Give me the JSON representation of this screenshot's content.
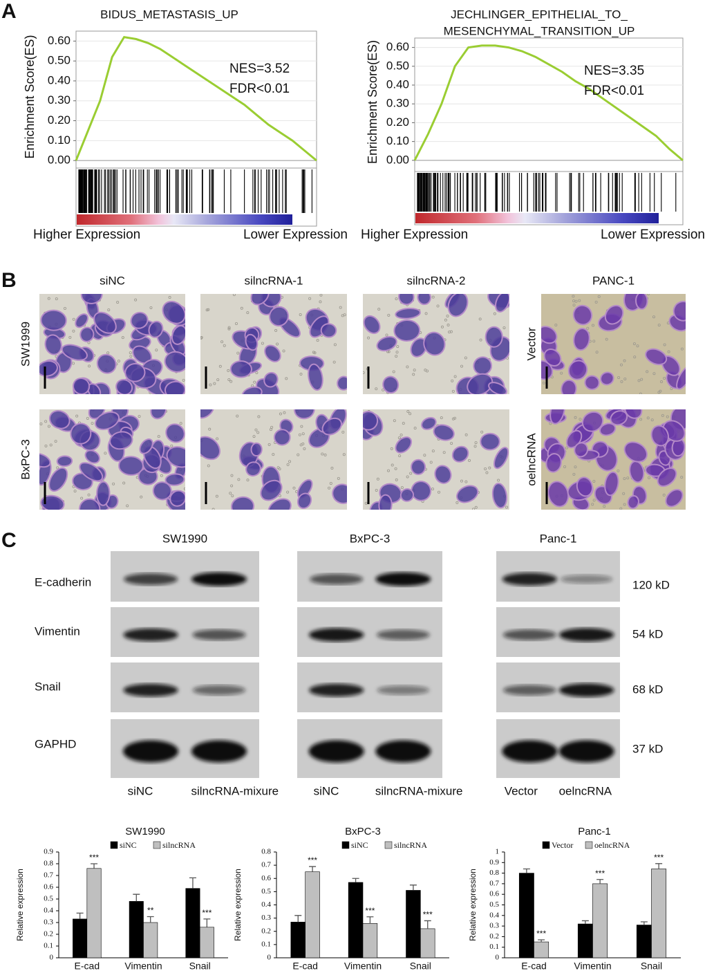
{
  "panels": {
    "a": "A",
    "b": "B",
    "c": "C"
  },
  "chart_data": [
    {
      "type": "gsea",
      "title": [
        "BIDUS_METASTASIS_UP"
      ],
      "y_label": "Enrichment Score(ES)",
      "values": [
        0,
        0.15,
        0.3,
        0.52,
        0.62,
        0.61,
        0.59,
        0.56,
        0.52,
        0.48,
        0.44,
        0.4,
        0.36,
        0.32,
        0.28,
        0.23,
        0.18,
        0.14,
        0.1,
        0.05,
        0
      ],
      "color": "#9acd32",
      "ylim": [
        -0.01,
        0.65
      ],
      "yticks": [
        {
          "value": 0,
          "label": "0.00"
        },
        {
          "value": 0.1,
          "label": "0.10"
        },
        {
          "value": 0.2,
          "label": "0.20"
        },
        {
          "value": 0.3,
          "label": "0.30"
        },
        {
          "value": 0.4,
          "label": "0.40"
        },
        {
          "value": 0.5,
          "label": "0.50"
        },
        {
          "value": 0.6,
          "label": "0.60"
        }
      ],
      "grid": true,
      "annotations": [
        "NES=3.52",
        "FDR<0.01"
      ],
      "axis_end_labels": [
        "Higher Expression",
        "Lower Expression"
      ]
    },
    {
      "type": "gsea",
      "title": [
        "JECHLINGER_EPITHELIAL_TO_",
        "MESENCHYMAL_TRANSITION_UP"
      ],
      "y_label": "Enrichment Score(ES)",
      "values": [
        0,
        0.14,
        0.3,
        0.5,
        0.6,
        0.61,
        0.61,
        0.6,
        0.58,
        0.55,
        0.51,
        0.47,
        0.42,
        0.38,
        0.33,
        0.28,
        0.23,
        0.18,
        0.13,
        0.06,
        0
      ],
      "color": "#9acd32",
      "ylim": [
        -0.03,
        0.65
      ],
      "yticks": [
        {
          "value": 0,
          "label": "0.00"
        },
        {
          "value": 0.1,
          "label": "0.10"
        },
        {
          "value": 0.2,
          "label": "0.20"
        },
        {
          "value": 0.3,
          "label": "0.30"
        },
        {
          "value": 0.4,
          "label": "0.40"
        },
        {
          "value": 0.5,
          "label": "0.50"
        },
        {
          "value": 0.6,
          "label": "0.60"
        }
      ],
      "grid": true,
      "annotations": [
        "NES=3.35",
        "FDR<0.01"
      ],
      "axis_end_labels": [
        "Higher Expression",
        "Lower Expression"
      ]
    },
    {
      "type": "bar",
      "title": "SW1990",
      "y_label": "Relative expression",
      "categories": [
        "E-cad",
        "Vimentin",
        "Snail"
      ],
      "series": [
        {
          "name": "siNC",
          "color": "#000000",
          "values": [
            0.33,
            0.48,
            0.59
          ],
          "errors": [
            0.05,
            0.06,
            0.09
          ],
          "annotations": [
            null,
            null,
            null
          ]
        },
        {
          "name": "silncRNA",
          "color": "#bfbfbf",
          "values": [
            0.76,
            0.3,
            0.26
          ],
          "errors": [
            0.04,
            0.05,
            0.07
          ],
          "annotations": [
            "***",
            "**",
            "***"
          ]
        }
      ],
      "ylim": [
        0,
        0.9
      ],
      "yticks": [
        0,
        0.1,
        0.2,
        0.3,
        0.4,
        0.5,
        0.6,
        0.7,
        0.8,
        0.9
      ]
    },
    {
      "type": "bar",
      "title": "BxPC-3",
      "y_label": "Relative expression",
      "categories": [
        "E-cad",
        "Vimentin",
        "Snail"
      ],
      "series": [
        {
          "name": "siNC",
          "color": "#000000",
          "values": [
            0.27,
            0.57,
            0.51
          ],
          "errors": [
            0.05,
            0.03,
            0.04
          ],
          "annotations": [
            null,
            null,
            null
          ]
        },
        {
          "name": "silncRNA",
          "color": "#bfbfbf",
          "values": [
            0.65,
            0.26,
            0.22
          ],
          "errors": [
            0.04,
            0.05,
            0.06
          ],
          "annotations": [
            "***",
            "***",
            "***"
          ]
        }
      ],
      "ylim": [
        0,
        0.8
      ],
      "yticks": [
        0,
        0.1,
        0.2,
        0.3,
        0.4,
        0.5,
        0.6,
        0.7,
        0.8
      ]
    },
    {
      "type": "bar",
      "title": "Panc-1",
      "y_label": "Relative expression",
      "categories": [
        "E-cad",
        "Vimentin",
        "Snail"
      ],
      "series": [
        {
          "name": "Vector",
          "color": "#000000",
          "values": [
            0.8,
            0.32,
            0.31
          ],
          "errors": [
            0.04,
            0.03,
            0.03
          ],
          "annotations": [
            null,
            null,
            null
          ]
        },
        {
          "name": "oelncRNA",
          "color": "#bfbfbf",
          "values": [
            0.15,
            0.7,
            0.84
          ],
          "errors": [
            0.02,
            0.04,
            0.05
          ],
          "annotations": [
            "***",
            "***",
            "***"
          ]
        }
      ],
      "ylim": [
        0,
        1
      ],
      "yticks": [
        0,
        0.1,
        0.2,
        0.3,
        0.4,
        0.5,
        0.6,
        0.7,
        0.8,
        0.9,
        1
      ]
    }
  ],
  "micrographs": {
    "columns": [
      "siNC",
      "silncRNA-1",
      "silncRNA-2",
      "PANC-1"
    ],
    "rows": [
      "SW1999",
      "BxPC-3"
    ],
    "side_rows": [
      "Vector",
      "oelncRNA"
    ]
  },
  "blots": {
    "groups": [
      {
        "title": "SW1990",
        "lanes": [
          "siNC",
          "silncRNA-mixure"
        ]
      },
      {
        "title": "BxPC-3",
        "lanes": [
          "siNC",
          "silncRNA-mixure"
        ]
      },
      {
        "title": "Panc-1",
        "lanes": [
          "Vector",
          "oelncRNA"
        ]
      }
    ],
    "proteins": [
      "E-cadherin",
      "Vimentin",
      "Snail",
      "GAPHD"
    ],
    "sizes": [
      "120 kD",
      "54 kD",
      "68 kD",
      "37 kD"
    ]
  }
}
